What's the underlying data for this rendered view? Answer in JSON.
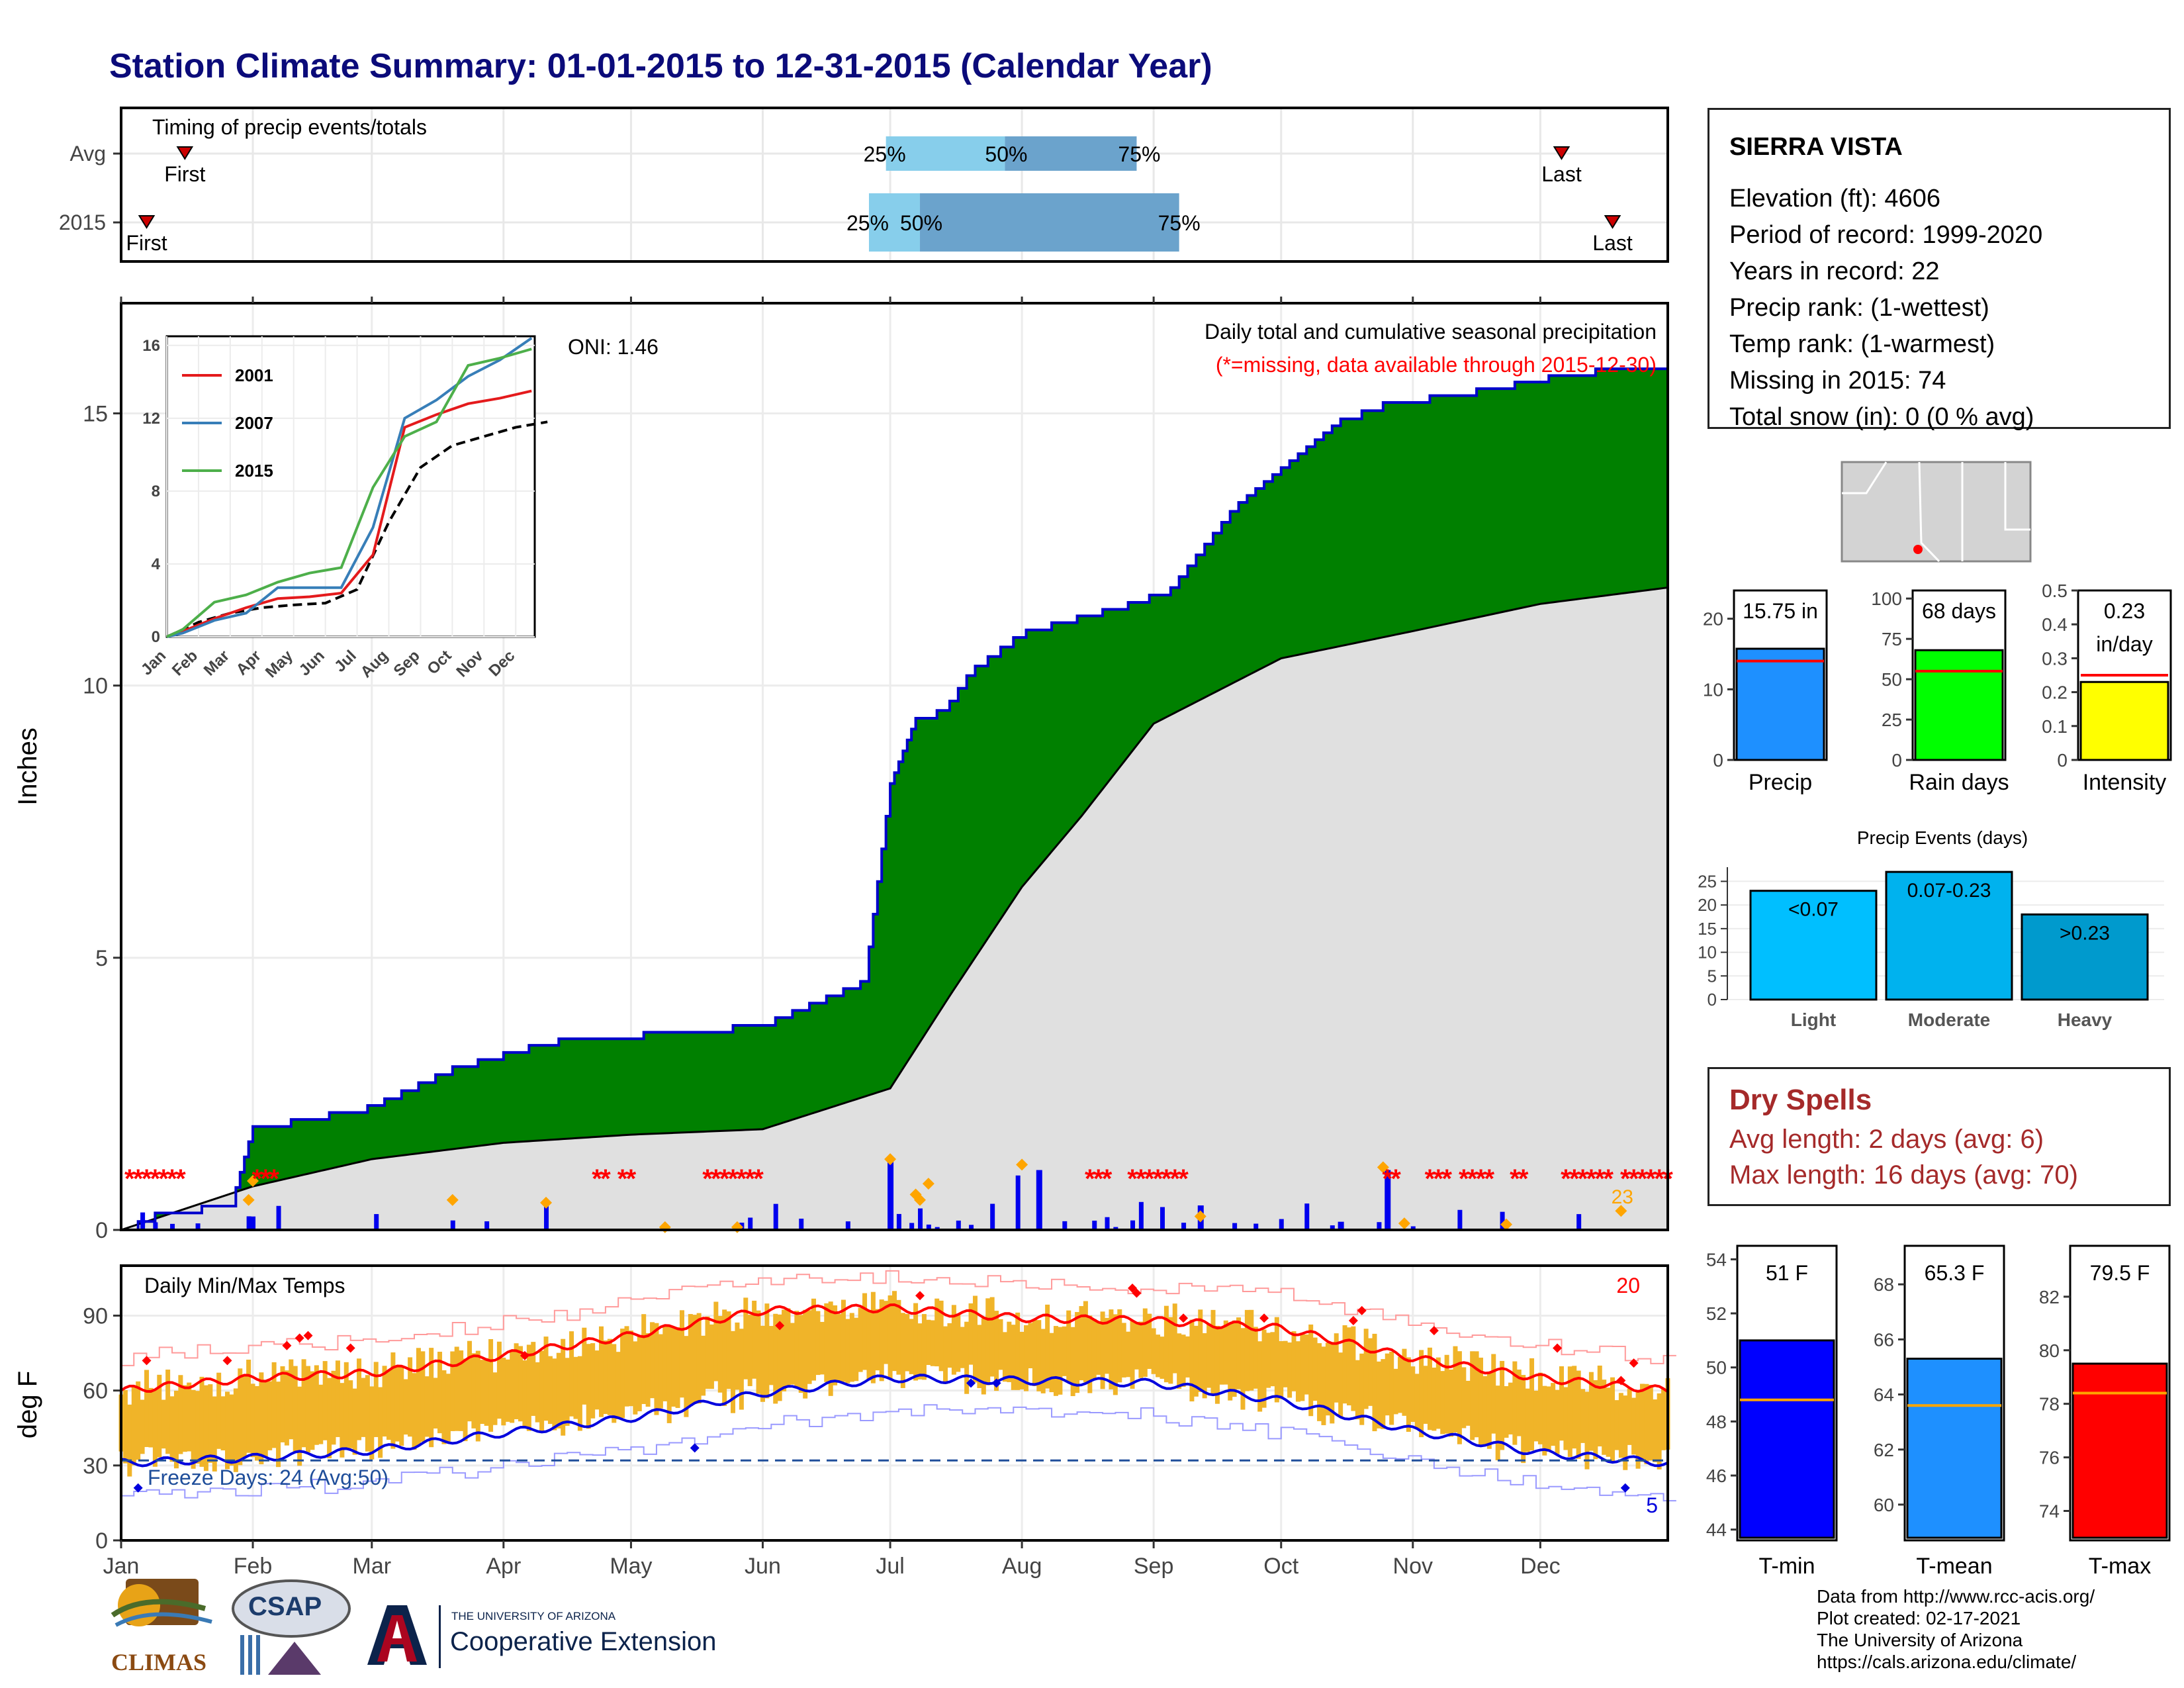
{
  "title": "Station Climate Summary: 01-01-2015 to 12-31-2015 (Calendar Year)",
  "timing": {
    "title": "Timing of precip events/totals",
    "rows": [
      "Avg",
      "2015"
    ],
    "first_label": "First",
    "last_label": "Last",
    "pct_labels": [
      "25%",
      "50%",
      "75%"
    ]
  },
  "station": {
    "name": "SIERRA VISTA",
    "lines": [
      "Elevation (ft): 4606",
      "Period of record: 1999-2020",
      "Years in record: 22",
      "Precip rank:  (1-wettest)",
      "Temp rank:  (1-warmest)",
      "Missing in 2015: 74",
      "Total snow (in): 0 (0 % avg)"
    ]
  },
  "precip_panel": {
    "ylabel": "Inches",
    "oni": "ONI: 1.46",
    "note1": "Daily total and cumulative seasonal precipitation",
    "note2": "(*=missing, data available through 2015-12-30)",
    "count_label": "23",
    "missing_marker": "*"
  },
  "inset": {
    "legend": [
      "2001",
      "2007",
      "2015"
    ],
    "colors": [
      "#e41a1c",
      "#377eb8",
      "#4daf4a"
    ]
  },
  "temp_panel": {
    "ylabel": "deg F",
    "title": "Daily Min/Max Temps",
    "freeze": "Freeze Days: 24 (Avg:50)",
    "hot_count": "20",
    "cold_count": "5"
  },
  "months": [
    "Jan",
    "Feb",
    "Mar",
    "Apr",
    "May",
    "Jun",
    "Jul",
    "Aug",
    "Sep",
    "Oct",
    "Nov",
    "Dec"
  ],
  "summary_bars": {
    "precip": {
      "label": "Precip",
      "value_text": "15.75 in",
      "value": 15.75,
      "avg": 14.0
    },
    "rain_days": {
      "label": "Rain days",
      "value_text": "68 days",
      "value": 68,
      "avg": 55
    },
    "intensity": {
      "label": "Intensity",
      "value_text": "0.23",
      "value_text2": "in/day",
      "value": 0.23,
      "avg": 0.25
    }
  },
  "events": {
    "title": "Precip Events (days)",
    "categories": [
      "Light",
      "Moderate",
      "Heavy"
    ],
    "bar_labels": [
      "<0.07",
      "0.07-0.23",
      ">0.23"
    ],
    "values": [
      23,
      27,
      18
    ]
  },
  "dry_spells": {
    "title": "Dry Spells",
    "avg": "Avg length: 2 days (avg: 6)",
    "max": "Max length: 16 days (avg: 70)"
  },
  "temp_bars": {
    "tmin": {
      "label": "T-min",
      "value_text": "51 F",
      "value": 51.0,
      "avg": 48.8
    },
    "tmean": {
      "label": "T-mean",
      "value_text": "65.3 F",
      "value": 65.3,
      "avg": 63.6
    },
    "tmax": {
      "label": "T-max",
      "value_text": "79.5 F",
      "value": 79.5,
      "avg": 78.4
    }
  },
  "credits": [
    "Data from http://www.rcc-acis.org/",
    "Plot created: 02-17-2021",
    "The University of Arizona",
    "https://cals.arizona.edu/climate/"
  ],
  "logos": {
    "climas": "CLIMAS",
    "csap": "CSAP",
    "ua_top": "THE UNIVERSITY OF ARIZONA",
    "ua_bottom": "Cooperative Extension"
  },
  "chart_data": [
    {
      "type": "area",
      "title": "Daily total and cumulative seasonal precipitation",
      "ylabel": "Inches",
      "ylim": [
        0,
        17
      ],
      "series": [
        {
          "name": "2015",
          "x": [
            "01-01",
            "01-10",
            "01-27",
            "02-01",
            "02-15",
            "03-01",
            "03-20",
            "04-12",
            "06-01",
            "06-25",
            "07-01",
            "07-07",
            "07-14",
            "07-20",
            "08-01",
            "08-10",
            "08-25",
            "09-05",
            "09-20",
            "10-15",
            "10-25",
            "11-20",
            "12-10",
            "12-31"
          ],
          "values": [
            0.0,
            0.35,
            0.5,
            1.9,
            2.1,
            2.3,
            3.0,
            3.5,
            3.8,
            4.6,
            8.2,
            9.4,
            9.6,
            10.3,
            11.0,
            11.2,
            11.5,
            11.8,
            13.3,
            14.9,
            15.2,
            15.5,
            15.8,
            15.9
          ]
        },
        {
          "name": "Avg",
          "x": [
            "01-01",
            "02-01",
            "03-01",
            "04-01",
            "05-01",
            "06-01",
            "07-01",
            "07-15",
            "08-01",
            "08-15",
            "09-01",
            "10-01",
            "11-01",
            "12-01",
            "12-31"
          ],
          "values": [
            0.0,
            0.8,
            1.3,
            1.6,
            1.75,
            1.85,
            2.6,
            4.3,
            6.3,
            7.6,
            9.3,
            10.5,
            11.0,
            11.5,
            11.8
          ]
        }
      ]
    },
    {
      "type": "line",
      "title": "",
      "ylim": [
        0,
        16.5
      ],
      "series": [
        {
          "name": "2001",
          "x": [
            1,
            2,
            3,
            4,
            5,
            6,
            7,
            8,
            9,
            10,
            11,
            12
          ],
          "values": [
            0.3,
            1.0,
            1.6,
            2.1,
            2.2,
            2.4,
            4.5,
            11.5,
            12.2,
            12.8,
            13.1,
            13.5
          ]
        },
        {
          "name": "2007",
          "x": [
            1,
            2,
            3,
            4,
            5,
            6,
            7,
            8,
            9,
            10,
            11,
            12
          ],
          "values": [
            0.2,
            0.9,
            1.3,
            2.7,
            2.7,
            2.7,
            6.0,
            12.0,
            13.0,
            14.3,
            15.2,
            16.4
          ]
        },
        {
          "name": "2015",
          "x": [
            1,
            2,
            3,
            4,
            5,
            6,
            7,
            8,
            9,
            10,
            11,
            12
          ],
          "values": [
            0.4,
            1.9,
            2.3,
            3.0,
            3.5,
            3.8,
            8.2,
            11.0,
            11.8,
            14.9,
            15.3,
            15.8
          ]
        }
      ]
    },
    {
      "type": "line",
      "title": "Daily Min/Max Temps",
      "ylabel": "deg F",
      "ylim": [
        0,
        110
      ],
      "series": [
        {
          "name": "Avg Max",
          "x": [
            "01-01",
            "02-01",
            "03-01",
            "04-01",
            "05-01",
            "06-01",
            "07-01",
            "08-01",
            "09-01",
            "10-01",
            "11-01",
            "12-01",
            "12-31"
          ],
          "values": [
            60,
            65,
            67,
            74,
            82,
            92,
            93,
            89,
            88,
            85,
            73,
            65,
            60
          ]
        },
        {
          "name": "Avg Min",
          "x": [
            "01-01",
            "02-01",
            "03-01",
            "04-01",
            "05-01",
            "06-01",
            "07-01",
            "08-01",
            "09-01",
            "10-01",
            "11-01",
            "12-01",
            "12-31"
          ],
          "values": [
            31,
            33,
            36,
            43,
            49,
            59,
            65,
            64,
            63,
            56,
            44,
            35,
            31
          ]
        }
      ]
    },
    {
      "type": "bar",
      "title": "Precip Events (days)",
      "categories": [
        "Light",
        "Moderate",
        "Heavy"
      ],
      "values": [
        23,
        27,
        18
      ]
    }
  ]
}
